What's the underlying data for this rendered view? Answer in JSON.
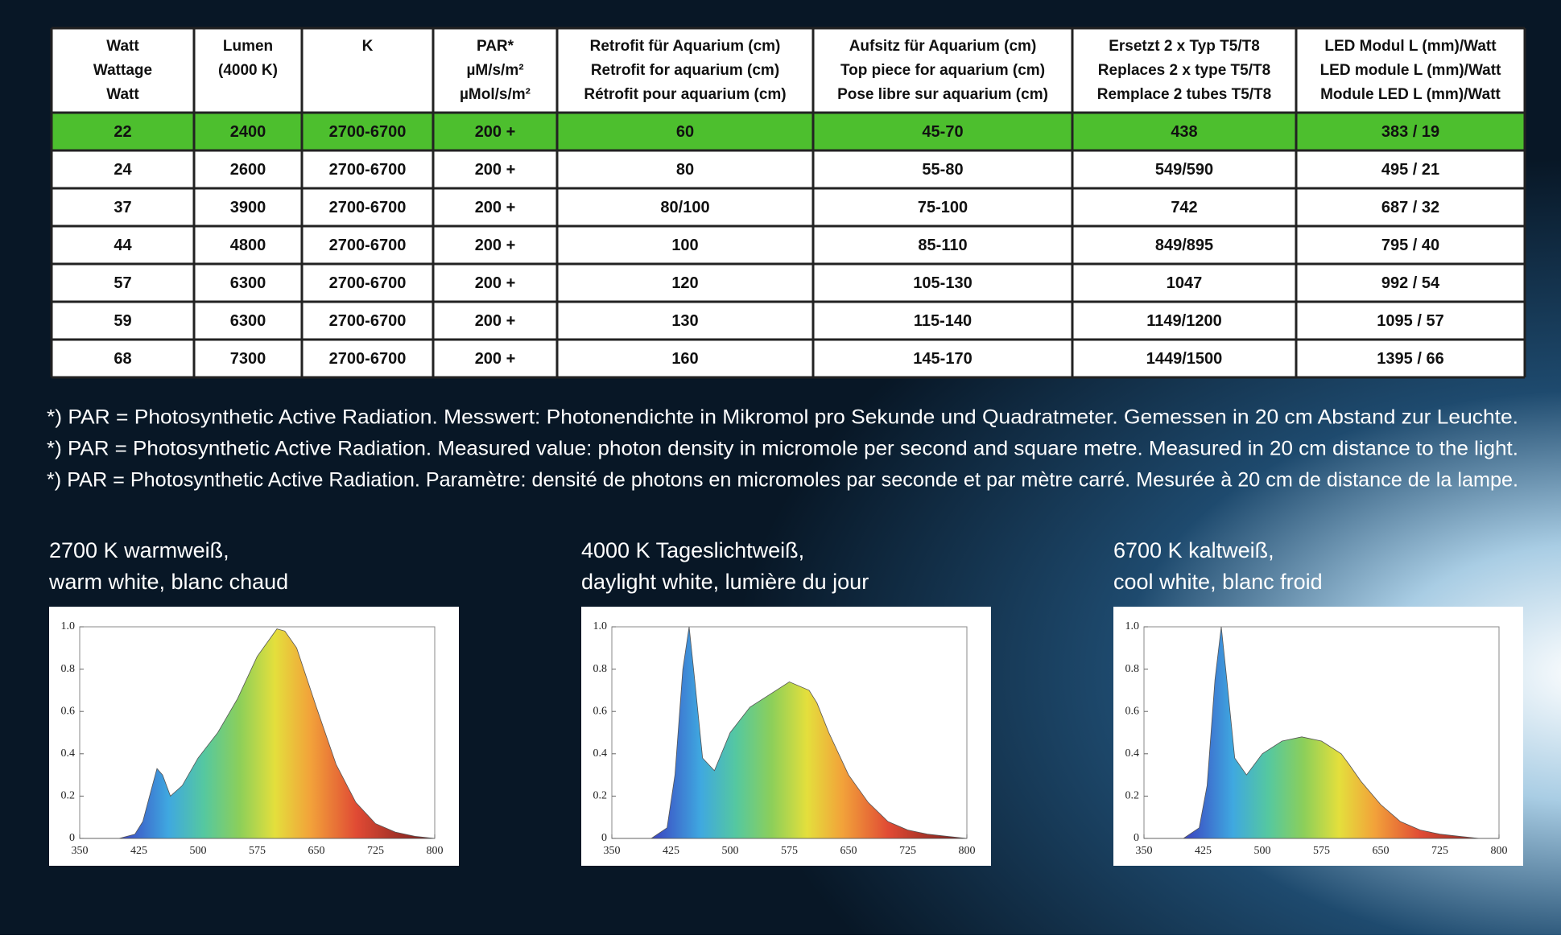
{
  "table": {
    "header": [
      [
        "Watt",
        "Wattage",
        "Watt"
      ],
      [
        "Lumen",
        "(4000 K)"
      ],
      [
        "K"
      ],
      [
        "PAR*",
        "µM/s/m²",
        "µMol/s/m²"
      ],
      [
        "Retrofit für Aquarium (cm)",
        "Retrofit for aquarium (cm)",
        "Rétrofit pour aquarium (cm)"
      ],
      [
        "Aufsitz für Aquarium (cm)",
        "Top piece for aquarium (cm)",
        "Pose libre sur aquarium (cm)"
      ],
      [
        "Ersetzt 2 x Typ T5/T8",
        "Replaces 2 x type T5/T8",
        "Remplace 2 tubes T5/T8"
      ],
      [
        "LED Modul L (mm)/Watt",
        "LED module L (mm)/Watt",
        "Module LED L (mm)/Watt"
      ]
    ],
    "rows": [
      [
        "22",
        "2400",
        "2700-6700",
        "200 +",
        "60",
        "45-70",
        "438",
        "383 / 19"
      ],
      [
        "24",
        "2600",
        "2700-6700",
        "200 +",
        "80",
        "55-80",
        "549/590",
        "495 / 21"
      ],
      [
        "37",
        "3900",
        "2700-6700",
        "200 +",
        "80/100",
        "75-100",
        "742",
        "687 / 32"
      ],
      [
        "44",
        "4800",
        "2700-6700",
        "200 +",
        "100",
        "85-110",
        "849/895",
        "795 / 40"
      ],
      [
        "57",
        "6300",
        "2700-6700",
        "200 +",
        "120",
        "105-130",
        "1047",
        "992 / 54"
      ],
      [
        "59",
        "6300",
        "2700-6700",
        "200 +",
        "130",
        "115-140",
        "1149/1200",
        "1095 / 57"
      ],
      [
        "68",
        "7300",
        "2700-6700",
        "200 +",
        "160",
        "145-170",
        "1449/1500",
        "1395 / 66"
      ]
    ]
  },
  "notes": [
    "*) PAR = Photosynthetic Active Radiation. Messwert: Photonendichte in Mikromol pro Sekunde und Quadratmeter. Gemessen in 20 cm Abstand zur Leuchte.",
    "*) PAR = Photosynthetic Active Radiation. Measured value: photon density in micromole per second and square metre. Measured in 20 cm distance to the light.",
    "*) PAR = Photosynthetic Active Radiation. Paramètre: densité de photons en micromoles par seconde et par mètre carré. Mesurée à 20 cm de distance de la lampe."
  ],
  "chart_data": [
    {
      "type": "area",
      "title": [
        "2700 K warmweiß,",
        "warm white, blanc chaud"
      ],
      "x": [
        350,
        400,
        420,
        430,
        440,
        448,
        455,
        465,
        480,
        500,
        525,
        550,
        575,
        600,
        610,
        625,
        650,
        675,
        700,
        725,
        750,
        775,
        800
      ],
      "values": [
        0,
        0,
        0.02,
        0.08,
        0.22,
        0.33,
        0.3,
        0.2,
        0.25,
        0.38,
        0.5,
        0.66,
        0.86,
        0.99,
        0.98,
        0.9,
        0.62,
        0.35,
        0.17,
        0.07,
        0.03,
        0.01,
        0
      ],
      "xlim": [
        350,
        800
      ],
      "ylim": [
        0,
        1
      ],
      "xticks": [
        350,
        425,
        500,
        575,
        650,
        725,
        800
      ],
      "yticks": [
        0,
        0.2,
        0.4,
        0.6,
        0.8,
        {
          "value": 1,
          "label": "1.0"
        }
      ]
    },
    {
      "type": "area",
      "title": [
        "4000 K Tageslichtweiß,",
        "daylight white, lumière du jour"
      ],
      "x": [
        350,
        400,
        420,
        430,
        440,
        448,
        455,
        465,
        480,
        500,
        525,
        550,
        575,
        600,
        610,
        625,
        650,
        675,
        700,
        725,
        750,
        775,
        800
      ],
      "values": [
        0,
        0,
        0.05,
        0.3,
        0.8,
        1,
        0.75,
        0.38,
        0.32,
        0.5,
        0.62,
        0.68,
        0.74,
        0.7,
        0.64,
        0.5,
        0.3,
        0.17,
        0.08,
        0.04,
        0.02,
        0.01,
        0
      ],
      "xlim": [
        350,
        800
      ],
      "ylim": [
        0,
        1
      ],
      "xticks": [
        350,
        425,
        500,
        575,
        650,
        725,
        800
      ],
      "yticks": [
        0,
        0.2,
        0.4,
        0.6,
        0.8,
        {
          "value": 1,
          "label": "1.0"
        }
      ]
    },
    {
      "type": "area",
      "title": [
        "6700 K kaltweiß,",
        "cool white, blanc froid"
      ],
      "x": [
        350,
        400,
        420,
        430,
        440,
        448,
        455,
        465,
        480,
        500,
        525,
        550,
        575,
        600,
        610,
        625,
        650,
        675,
        700,
        725,
        750,
        775,
        800
      ],
      "values": [
        0,
        0,
        0.05,
        0.25,
        0.75,
        1,
        0.75,
        0.38,
        0.3,
        0.4,
        0.46,
        0.48,
        0.46,
        0.4,
        0.35,
        0.27,
        0.16,
        0.08,
        0.04,
        0.02,
        0.01,
        0,
        0
      ],
      "xlim": [
        350,
        800
      ],
      "ylim": [
        0,
        1
      ],
      "xticks": [
        350,
        425,
        500,
        575,
        650,
        725,
        800
      ],
      "yticks": [
        0,
        0.2,
        0.4,
        0.6,
        0.8,
        {
          "value": 1,
          "label": "1.0"
        }
      ]
    }
  ]
}
